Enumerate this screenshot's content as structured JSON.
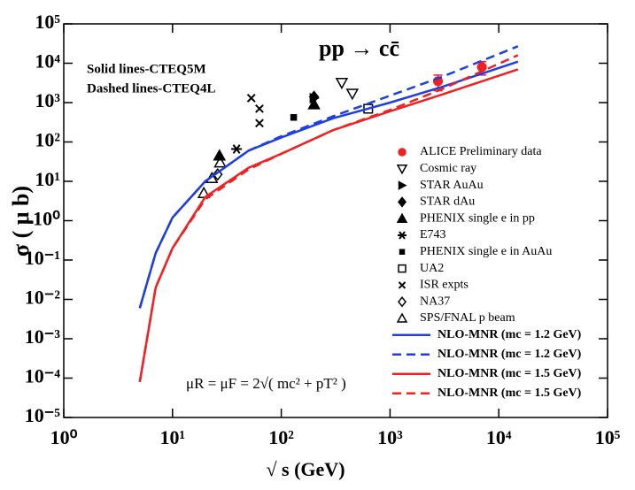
{
  "chart_data": {
    "type": "scatter",
    "title": "pp → cc̄",
    "x_label": "√ s   (GeV)",
    "y_label": "σ ( μ b)",
    "annotations": [
      "Solid lines-CTEQ5M",
      "Dashed lines-CTEQ4L",
      "μR = μF = 2√( mc² + pT² )"
    ],
    "log_x": true,
    "log_y": true,
    "xlim": [
      1,
      100000
    ],
    "ylim": [
      1e-05,
      100000
    ],
    "xticks": [
      {
        "value": 1,
        "label": "10⁰"
      },
      {
        "value": 10,
        "label": "10¹"
      },
      {
        "value": 100,
        "label": "10²"
      },
      {
        "value": 1000,
        "label": "10³"
      },
      {
        "value": 10000,
        "label": "10⁴"
      },
      {
        "value": 100000,
        "label": "10⁵"
      }
    ],
    "yticks": [
      {
        "value": 1e-05,
        "label": "10⁻⁵"
      },
      {
        "value": 0.0001,
        "label": "10⁻⁴"
      },
      {
        "value": 0.001,
        "label": "10⁻³"
      },
      {
        "value": 0.01,
        "label": "10⁻²"
      },
      {
        "value": 0.1,
        "label": "10⁻¹"
      },
      {
        "value": 1,
        "label": "10⁰"
      },
      {
        "value": 10,
        "label": "10¹"
      },
      {
        "value": 100,
        "label": "10²"
      },
      {
        "value": 1000,
        "label": "10³"
      },
      {
        "value": 10000,
        "label": "10⁴"
      },
      {
        "value": 100000,
        "label": "10⁵"
      }
    ],
    "legend": "right",
    "series": [
      {
        "name": "ALICE Preliminary data",
        "kind": "scatter",
        "marker": "circle",
        "color": "#ee2222",
        "x": [
          2760,
          7000
        ],
        "values": [
          3500,
          8000
        ],
        "errors": [
          1500,
          3000
        ]
      },
      {
        "name": "Cosmic ray",
        "kind": "scatter",
        "marker": "tri-down-open",
        "color": "#000000",
        "x": [
          360,
          450
        ],
        "values": [
          3200,
          1700
        ]
      },
      {
        "name": "STAR AuAu",
        "kind": "scatter",
        "marker": "tri-right",
        "color": "#000000",
        "x": [
          200
        ],
        "values": [
          1300
        ]
      },
      {
        "name": "STAR dAu",
        "kind": "scatter",
        "marker": "diamond",
        "color": "#000000",
        "x": [
          200
        ],
        "values": [
          1400
        ]
      },
      {
        "name": "PHENIX single e in pp",
        "kind": "scatter",
        "marker": "tri-up",
        "color": "#000000",
        "x": [
          200,
          27
        ],
        "values": [
          900,
          45
        ]
      },
      {
        "name": "E743",
        "kind": "scatter",
        "marker": "star",
        "color": "#000000",
        "x": [
          38.8
        ],
        "values": [
          66
        ]
      },
      {
        "name": "PHENIX single e in AuAu",
        "kind": "scatter",
        "marker": "square",
        "color": "#000000",
        "x": [
          130
        ],
        "values": [
          420
        ]
      },
      {
        "name": "UA2",
        "kind": "scatter",
        "marker": "square-open",
        "color": "#000000",
        "x": [
          630
        ],
        "values": [
          700
        ]
      },
      {
        "name": "ISR expts",
        "kind": "scatter",
        "marker": "cross",
        "color": "#000000",
        "x": [
          53,
          63,
          63
        ],
        "values": [
          1300,
          700,
          300
        ]
      },
      {
        "name": "NA37",
        "kind": "scatter",
        "marker": "diamond-open",
        "color": "#000000",
        "x": [
          26
        ],
        "values": [
          15
        ]
      },
      {
        "name": "SPS/FNAL p beam",
        "kind": "scatter",
        "marker": "tri-up-open",
        "color": "#000000",
        "x": [
          19.4,
          23,
          27.4
        ],
        "values": [
          5,
          12,
          30
        ]
      },
      {
        "name": "NLO-MNR (mc = 1.2 GeV)",
        "kind": "line",
        "dash": false,
        "color": "#1f3fe0",
        "x": [
          5,
          7,
          10,
          20,
          50,
          100,
          300,
          1000,
          3000,
          15000
        ],
        "values": [
          0.006,
          0.15,
          1.2,
          10,
          60,
          130,
          400,
          1000,
          2500,
          11000
        ]
      },
      {
        "name": "NLO-MNR (mc = 1.2 GeV)",
        "kind": "line",
        "dash": true,
        "color": "#1f3fe0",
        "x": [
          5,
          7,
          10,
          20,
          50,
          100,
          300,
          1000,
          3000,
          15000
        ],
        "values": [
          0.006,
          0.15,
          1.2,
          10,
          60,
          140,
          450,
          1500,
          4500,
          27000
        ]
      },
      {
        "name": "NLO-MNR (mc = 1.5 GeV)",
        "kind": "line",
        "dash": false,
        "color": "#ee2222",
        "x": [
          5,
          7,
          10,
          20,
          50,
          100,
          300,
          1000,
          3000,
          15000
        ],
        "values": [
          8e-05,
          0.02,
          0.2,
          4,
          22,
          50,
          200,
          600,
          1600,
          7000
        ]
      },
      {
        "name": "NLO-MNR (mc = 1.5 GeV)",
        "kind": "line",
        "dash": true,
        "color": "#ee2222",
        "x": [
          5,
          7,
          10,
          20,
          50,
          100,
          300,
          1000,
          3000,
          15000
        ],
        "values": [
          8e-05,
          0.02,
          0.2,
          3.5,
          20,
          50,
          200,
          650,
          2200,
          16000
        ]
      }
    ]
  }
}
